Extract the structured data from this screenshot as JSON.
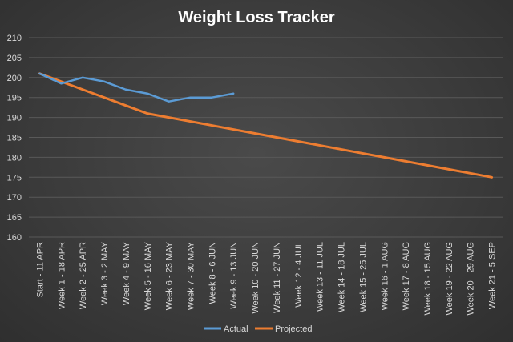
{
  "chart_data": {
    "type": "line",
    "title": "Weight Loss Tracker",
    "xlabel": "",
    "ylabel": "",
    "ylim": [
      160,
      210
    ],
    "yticks": [
      160,
      165,
      170,
      175,
      180,
      185,
      190,
      195,
      200,
      205,
      210
    ],
    "grid": true,
    "legend_position": "bottom",
    "categories": [
      "Start - 11 APR",
      "Week 1 - 18 APR",
      "Week 2 - 25 APR",
      "Week 3 - 2 MAY",
      "Week 4 - 9 MAY",
      "Week 5 - 16 MAY",
      "Week 6 - 23 MAY",
      "Week 7 - 30 MAY",
      "Week 8 - 6 JUN",
      "Week 9 - 13 JUN",
      "Week 10 - 20 JUN",
      "Week 11 - 27 JUN",
      "Week 12 - 4 JUL",
      "Week 13 - 11 JUL",
      "Week 14 - 18 JUL",
      "Week 15 - 25 JUL",
      "Week 16 - 1 AUG",
      "Week 17 - 8 AUG",
      "Week 18 - 15 AUG",
      "Week 19 - 22 AUG",
      "Week 20 - 29 AUG",
      "Week 21 - 5 SEP"
    ],
    "series": [
      {
        "name": "Actual",
        "color": "#5b9bd5",
        "values": [
          201,
          198.5,
          200,
          199,
          197,
          196,
          194,
          195,
          195,
          196,
          null,
          null,
          null,
          null,
          null,
          null,
          null,
          null,
          null,
          null,
          null,
          null
        ]
      },
      {
        "name": "Projected",
        "color": "#ed7d31",
        "values": [
          201,
          199,
          197,
          195,
          193,
          191,
          190,
          189,
          188,
          187,
          186,
          185,
          184,
          183,
          182,
          181,
          180,
          179,
          178,
          177,
          176,
          175
        ]
      }
    ]
  }
}
